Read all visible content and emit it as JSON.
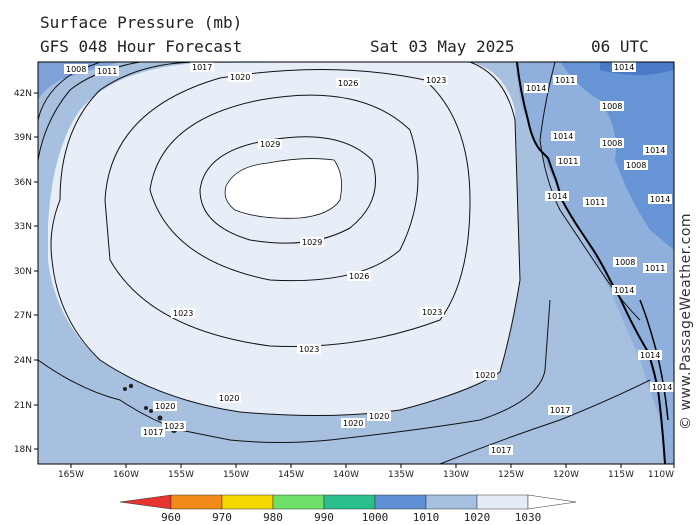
{
  "header": {
    "title": "Surface Pressure (mb)",
    "model": "GFS 048 Hour Forecast",
    "date": "Sat 03 May 2025",
    "time": "06 UTC"
  },
  "credit": "© www.PassageWeather.com",
  "map": {
    "lat_ticks": [
      "42N",
      "39N",
      "36N",
      "33N",
      "30N",
      "27N",
      "24N",
      "21N",
      "18N"
    ],
    "lon_ticks": [
      "165W",
      "160W",
      "155W",
      "150W",
      "145W",
      "140W",
      "135W",
      "130W",
      "125W",
      "120W",
      "115W",
      "110W"
    ],
    "contour_labels": {
      "c1008": "1008",
      "c1011": "1011",
      "c1014": "1014",
      "c1017": "1017",
      "c1020": "1020",
      "c1023": "1023",
      "c1026": "1026",
      "c1029": "1029"
    },
    "colors": {
      "p1030_plus": "#ffffff",
      "p1020_1030": "#e8eef8",
      "p1010_1020": "#a8c0e0",
      "p1000_1010": "#6a93d2",
      "land": "#8fb0dc"
    }
  },
  "legend": {
    "labels": [
      "960",
      "970",
      "980",
      "990",
      "1000",
      "1010",
      "1020",
      "1030"
    ],
    "colors": [
      "#e6352f",
      "#f28a1a",
      "#f5d800",
      "#6ee06a",
      "#2bbf8f",
      "#5f8fd4",
      "#a6c0e2",
      "#e4ecf8"
    ]
  }
}
